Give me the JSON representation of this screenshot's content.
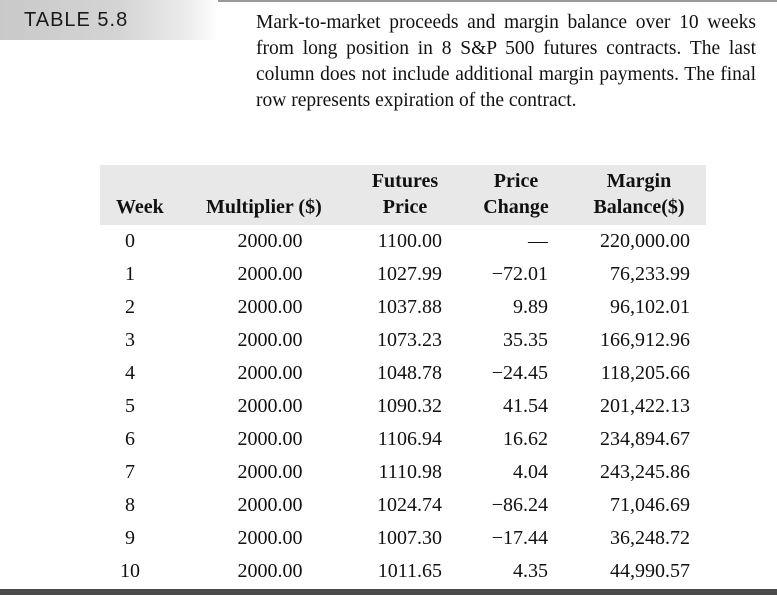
{
  "label": "TABLE 5.8",
  "caption": "Mark-to-market proceeds and margin balance over 10 weeks from long position in 8 S&P 500 futures contracts. The last column does not include additional margin payments. The final row represents expiration of the contract.",
  "headers": {
    "week": "Week",
    "multiplier": "Multiplier ($)",
    "futures_line1": "Futures",
    "futures_line2": "Price",
    "change_line1": "Price",
    "change_line2": "Change",
    "margin_line1": "Margin",
    "margin_line2": "Balance($)"
  },
  "rows": [
    {
      "week": "0",
      "multiplier": "2000.00",
      "futures": "1100.00",
      "change": "—",
      "margin": "220,000.00"
    },
    {
      "week": "1",
      "multiplier": "2000.00",
      "futures": "1027.99",
      "change": "−72.01",
      "margin": "76,233.99"
    },
    {
      "week": "2",
      "multiplier": "2000.00",
      "futures": "1037.88",
      "change": "9.89",
      "margin": "96,102.01"
    },
    {
      "week": "3",
      "multiplier": "2000.00",
      "futures": "1073.23",
      "change": "35.35",
      "margin": "166,912.96"
    },
    {
      "week": "4",
      "multiplier": "2000.00",
      "futures": "1048.78",
      "change": "−24.45",
      "margin": "118,205.66"
    },
    {
      "week": "5",
      "multiplier": "2000.00",
      "futures": "1090.32",
      "change": "41.54",
      "margin": "201,422.13"
    },
    {
      "week": "6",
      "multiplier": "2000.00",
      "futures": "1106.94",
      "change": "16.62",
      "margin": "234,894.67"
    },
    {
      "week": "7",
      "multiplier": "2000.00",
      "futures": "1110.98",
      "change": "4.04",
      "margin": "243,245.86"
    },
    {
      "week": "8",
      "multiplier": "2000.00",
      "futures": "1024.74",
      "change": "−86.24",
      "margin": "71,046.69"
    },
    {
      "week": "9",
      "multiplier": "2000.00",
      "futures": "1007.30",
      "change": "−17.44",
      "margin": "36,248.72"
    },
    {
      "week": "10",
      "multiplier": "2000.00",
      "futures": "1011.65",
      "change": "4.35",
      "margin": "44,990.57"
    }
  ]
}
